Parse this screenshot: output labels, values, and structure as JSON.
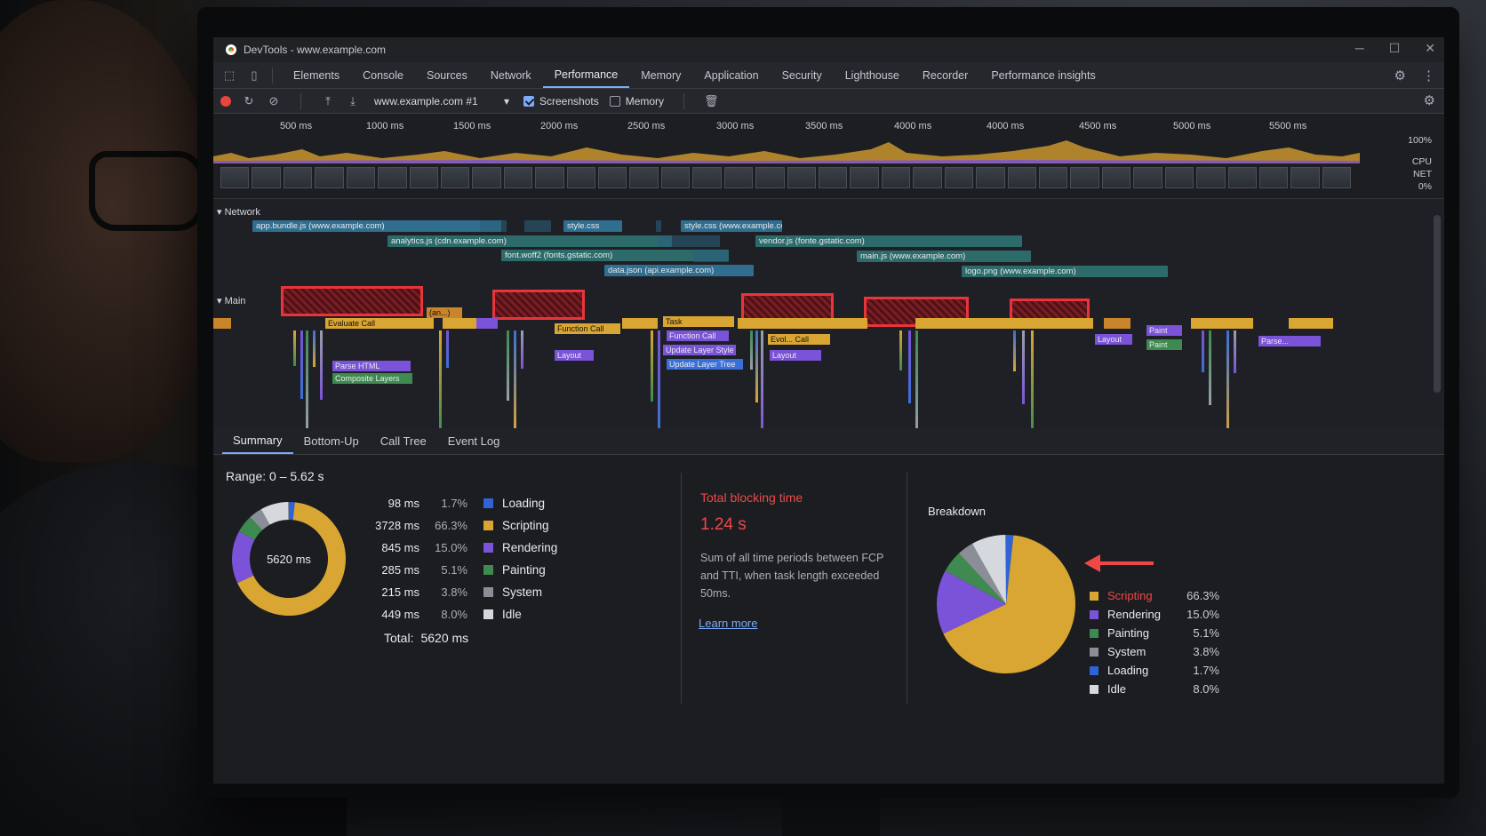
{
  "window": {
    "title": "DevTools - www.example.com"
  },
  "tabs": [
    "Elements",
    "Console",
    "Sources",
    "Network",
    "Performance",
    "Memory",
    "Application",
    "Security",
    "Lighthouse",
    "Recorder",
    "Performance insights"
  ],
  "active_tab": "Performance",
  "toolbar": {
    "recording_select": "www.example.com #1",
    "screenshots_label": "Screenshots",
    "screenshots_checked": true,
    "memory_label": "Memory",
    "memory_checked": false
  },
  "overview": {
    "ticks": [
      "500 ms",
      "1000 ms",
      "1500 ms",
      "2000 ms",
      "2500 ms",
      "3000 ms",
      "3500 ms",
      "4000 ms",
      "4000 ms",
      "4500 ms",
      "5000 ms",
      "5500 ms"
    ],
    "pct_100": "100%",
    "cpu_label": "CPU",
    "net_label": "NET",
    "pct_0": "0%"
  },
  "network": {
    "header": "Network",
    "requests": [
      {
        "label": "app.bundle.js (www.example.com)"
      },
      {
        "label": "analytics.js (cdn.example.com)"
      },
      {
        "label": "font.woff2 (fonts.gstatic.com)"
      },
      {
        "label": "data.json (api.example.com)"
      },
      {
        "label": "style.css"
      },
      {
        "label": "style.css (www.example.com)"
      },
      {
        "label": "vendor.js (fonte.gstatic.com)"
      },
      {
        "label": "main.js (www.example.com)"
      },
      {
        "label": "logo.png (www.example.com)"
      }
    ]
  },
  "main": {
    "header": "Main",
    "entries": [
      "Evaluate Call",
      "Parse HTML",
      "Composite Layers",
      "(an...)",
      "Function Call",
      "Layout",
      "Task",
      "Function Call",
      "Update Layer Style",
      "Update Layer Tree",
      "Evol... Call",
      "Layout",
      "Paint",
      "Paint",
      "Layout",
      "Parse..."
    ]
  },
  "summary_tabs": [
    "Summary",
    "Bottom-Up",
    "Call Tree",
    "Event Log"
  ],
  "active_summary_tab": "Summary",
  "summary": {
    "range": "Range: 0 – 5.62 s",
    "donut_center": "5620 ms",
    "rows": [
      {
        "ms": "98 ms",
        "pct": "1.7%",
        "label": "Loading",
        "color": "#2f63d6"
      },
      {
        "ms": "3728 ms",
        "pct": "66.3%",
        "label": "Scripting",
        "color": "#d9a633"
      },
      {
        "ms": "845 ms",
        "pct": "15.0%",
        "label": "Rendering",
        "color": "#7a53d8"
      },
      {
        "ms": "285 ms",
        "pct": "5.1%",
        "label": "Painting",
        "color": "#3f8a50"
      },
      {
        "ms": "215 ms",
        "pct": "3.8%",
        "label": "System",
        "color": "#8a8e96"
      },
      {
        "ms": "449 ms",
        "pct": "8.0%",
        "label": "Idle",
        "color": "#d5d8dd"
      }
    ],
    "total_label": "Total:",
    "total_value": "5620 ms"
  },
  "tbt": {
    "title": "Total blocking time",
    "value": "1.24 s",
    "description": "Sum of all time periods between FCP and TTI, when task length exceeded 50ms.",
    "learn_more": "Learn more"
  },
  "breakdown": {
    "title": "Breakdown",
    "items": [
      {
        "label": "Scripting",
        "pct": "66.3%",
        "color": "#d9a633",
        "highlight": true
      },
      {
        "label": "Rendering",
        "pct": "15.0%",
        "color": "#7a53d8"
      },
      {
        "label": "Painting",
        "pct": "5.1%",
        "color": "#3f8a50"
      },
      {
        "label": "System",
        "pct": "3.8%",
        "color": "#8a8e96"
      },
      {
        "label": "Loading",
        "pct": "1.7%",
        "color": "#2f63d6"
      },
      {
        "label": "Idle",
        "pct": "8.0%",
        "color": "#d5d8dd"
      }
    ],
    "accent_red": "#f04848"
  }
}
